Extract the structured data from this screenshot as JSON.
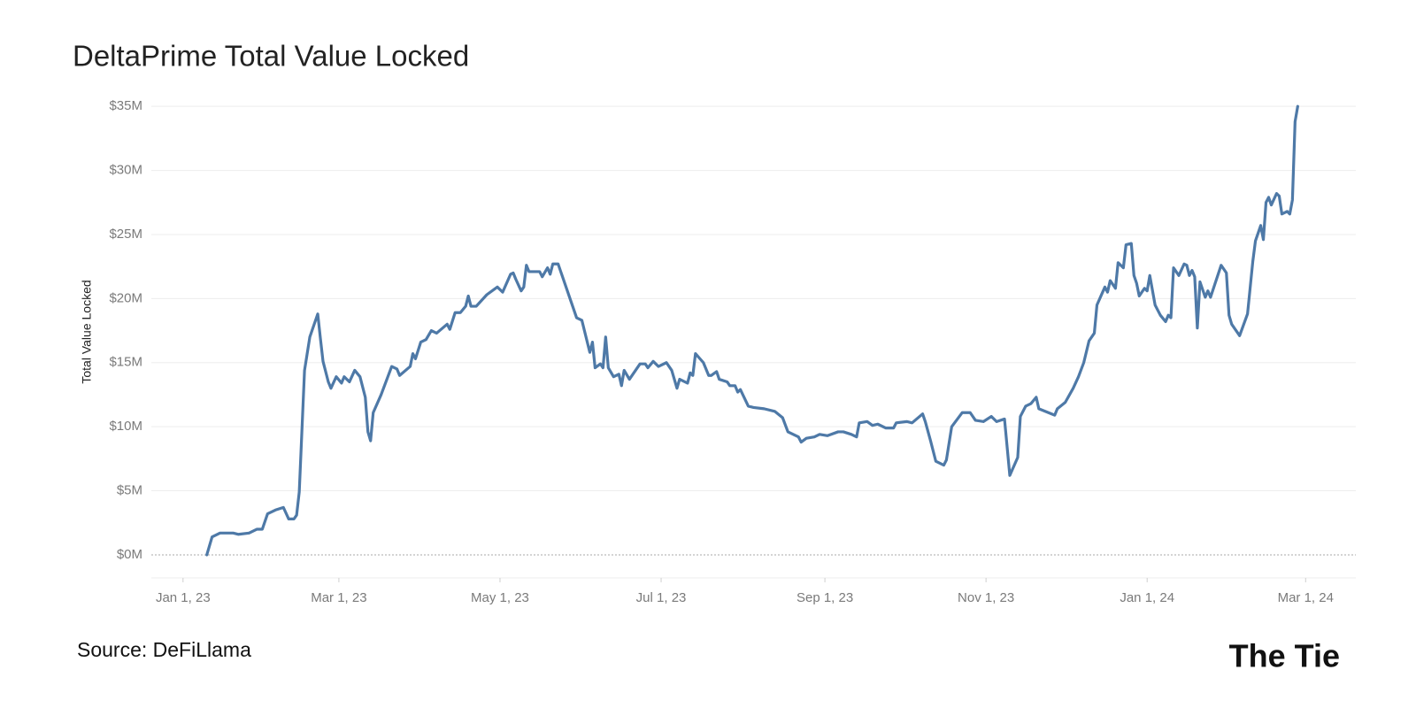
{
  "chart_data": {
    "type": "line",
    "title": "DeltaPrime Total Value Locked",
    "y_axis_label": "Total Value Locked",
    "source": "Source: DeFiLlama",
    "logo": "The Tie",
    "grid": true,
    "series": [
      {
        "name": "Total Value Locked",
        "color": "#4e79a7",
        "values": [
          0,
          1.4,
          1.7,
          1.7,
          1.6,
          1.7,
          2.0,
          2.0,
          3.2,
          3.5,
          3.7,
          2.8,
          2.8,
          3.1,
          4.9,
          14.4,
          17.0,
          18.8,
          16.9,
          15.1,
          13.5,
          13.0,
          13.9,
          13.4,
          13.9,
          13.5,
          14.4,
          13.9,
          12.3,
          9.6,
          8.9,
          11.1,
          12.5,
          14.7,
          14.5,
          14.0,
          14.7,
          15.7,
          15.3,
          16.6,
          16.8,
          17.5,
          17.3,
          18.0,
          17.6,
          18.9,
          18.9,
          19.4,
          20.2,
          19.4,
          19.4,
          20.3,
          20.9,
          20.5,
          21.9,
          22.0,
          21.5,
          20.6,
          20.9,
          22.6,
          22.1,
          22.1,
          21.7,
          22.4,
          21.9,
          22.7,
          22.7,
          18.5,
          18.3,
          15.8,
          16.6,
          14.6,
          14.9,
          14.6,
          17.0,
          14.6,
          13.9,
          14.1,
          13.2,
          14.4,
          13.7,
          14.9,
          14.9,
          14.6,
          15.1,
          14.7,
          15.0,
          14.4,
          13.0,
          13.7,
          13.4,
          14.2,
          14.0,
          15.7,
          15.0,
          14.0,
          14.0,
          14.3,
          13.7,
          13.5,
          13.2,
          13.2,
          12.7,
          12.9,
          11.6,
          11.5,
          11.4,
          11.2,
          10.7,
          9.6,
          9.2,
          8.8,
          9.1,
          9.2,
          9.4,
          9.3,
          9.6,
          9.6,
          9.4,
          9.2,
          10.3,
          10.4,
          10.1,
          10.2,
          9.9,
          9.9,
          10.3,
          10.4,
          10.3,
          11.0,
          10.4,
          8.9,
          7.3,
          7.0,
          7.4,
          10.0,
          11.1,
          11.1,
          10.5,
          10.4,
          10.8,
          10.4,
          10.6,
          6.2,
          7.6,
          10.8,
          11.6,
          11.8,
          12.3,
          11.4,
          10.9,
          11.4,
          11.9,
          13.0,
          13.9,
          15.0,
          16.7,
          17.3,
          19.5,
          20.9,
          20.5,
          21.4,
          20.8,
          22.8,
          22.4,
          24.2,
          24.3,
          21.8,
          21.2,
          20.2,
          20.8,
          20.6,
          21.8,
          19.5,
          18.7,
          18.2,
          18.7,
          18.5,
          22.4,
          21.8,
          22.7,
          22.6,
          21.8,
          22.2,
          21.7,
          17.7,
          21.3,
          20.1,
          20.6,
          20.1,
          22.6,
          22.0,
          18.7,
          18.0,
          17.1,
          18.8,
          22.9,
          24.5,
          25.7,
          24.6,
          27.5,
          27.9,
          27.3,
          28.2,
          28.0,
          26.6,
          26.8,
          26.6,
          27.7,
          33.8,
          35.0
        ]
      }
    ],
    "x": [
      "2023-01-10",
      "2023-01-12",
      "2023-01-15",
      "2023-01-20",
      "2023-01-22",
      "2023-01-26",
      "2023-01-29",
      "2023-01-31",
      "2023-02-02",
      "2023-02-05",
      "2023-02-08",
      "2023-02-10",
      "2023-02-12",
      "2023-02-13",
      "2023-02-14",
      "2023-02-16",
      "2023-02-18",
      "2023-02-21",
      "2023-02-22",
      "2023-02-23",
      "2023-02-25",
      "2023-02-26",
      "2023-02-28",
      "2023-03-02",
      "2023-03-03",
      "2023-03-05",
      "2023-03-07",
      "2023-03-09",
      "2023-03-11",
      "2023-03-12",
      "2023-03-13",
      "2023-03-14",
      "2023-03-17",
      "2023-03-21",
      "2023-03-23",
      "2023-03-24",
      "2023-03-28",
      "2023-03-29",
      "2023-03-30",
      "2023-04-01",
      "2023-04-03",
      "2023-04-05",
      "2023-04-07",
      "2023-04-11",
      "2023-04-12",
      "2023-04-14",
      "2023-04-16",
      "2023-04-18",
      "2023-04-19",
      "2023-04-20",
      "2023-04-22",
      "2023-04-26",
      "2023-04-30",
      "2023-05-02",
      "2023-05-05",
      "2023-05-06",
      "2023-05-07",
      "2023-05-09",
      "2023-05-10",
      "2023-05-11",
      "2023-05-12",
      "2023-05-16",
      "2023-05-17",
      "2023-05-19",
      "2023-05-20",
      "2023-05-21",
      "2023-05-23",
      "2023-05-30",
      "2023-06-01",
      "2023-06-04",
      "2023-06-05",
      "2023-06-06",
      "2023-06-08",
      "2023-06-09",
      "2023-06-10",
      "2023-06-11",
      "2023-06-13",
      "2023-06-15",
      "2023-06-16",
      "2023-06-17",
      "2023-06-19",
      "2023-06-23",
      "2023-06-25",
      "2023-06-26",
      "2023-06-28",
      "2023-06-30",
      "2023-07-03",
      "2023-07-05",
      "2023-07-07",
      "2023-07-08",
      "2023-07-11",
      "2023-07-12",
      "2023-07-13",
      "2023-07-14",
      "2023-07-17",
      "2023-07-19",
      "2023-07-20",
      "2023-07-22",
      "2023-07-23",
      "2023-07-26",
      "2023-07-27",
      "2023-07-29",
      "2023-07-30",
      "2023-07-31",
      "2023-08-03",
      "2023-08-05",
      "2023-08-09",
      "2023-08-13",
      "2023-08-16",
      "2023-08-18",
      "2023-08-22",
      "2023-08-23",
      "2023-08-25",
      "2023-08-28",
      "2023-08-30",
      "2023-09-02",
      "2023-09-06",
      "2023-09-08",
      "2023-09-11",
      "2023-09-13",
      "2023-09-14",
      "2023-09-17",
      "2023-09-19",
      "2023-09-21",
      "2023-09-24",
      "2023-09-27",
      "2023-09-28",
      "2023-10-02",
      "2023-10-04",
      "2023-10-08",
      "2023-10-09",
      "2023-10-11",
      "2023-10-13",
      "2023-10-16",
      "2023-10-17",
      "2023-10-19",
      "2023-10-23",
      "2023-10-26",
      "2023-10-28",
      "2023-10-31",
      "2023-11-03",
      "2023-11-05",
      "2023-11-08",
      "2023-11-10",
      "2023-11-13",
      "2023-11-14",
      "2023-11-16",
      "2023-11-18",
      "2023-11-20",
      "2023-11-21",
      "2023-11-27",
      "2023-11-28",
      "2023-12-01",
      "2023-12-04",
      "2023-12-06",
      "2023-12-08",
      "2023-12-10",
      "2023-12-12",
      "2023-12-13",
      "2023-12-16",
      "2023-12-17",
      "2023-12-18",
      "2023-12-20",
      "2023-12-21",
      "2023-12-23",
      "2023-12-24",
      "2023-12-26",
      "2023-12-27",
      "2023-12-28",
      "2023-12-29",
      "2023-12-31",
      "2024-01-01",
      "2024-01-02",
      "2024-01-04",
      "2024-01-06",
      "2024-01-08",
      "2024-01-09",
      "2024-01-10",
      "2024-01-11",
      "2024-01-13",
      "2024-01-15",
      "2024-01-16",
      "2024-01-17",
      "2024-01-18",
      "2024-01-19",
      "2024-01-20",
      "2024-01-21",
      "2024-01-23",
      "2024-01-24",
      "2024-01-25",
      "2024-01-29",
      "2024-01-31",
      "2024-02-01",
      "2024-02-02",
      "2024-02-05",
      "2024-02-08",
      "2024-02-10",
      "2024-02-11",
      "2024-02-13",
      "2024-02-14",
      "2024-02-15",
      "2024-02-16",
      "2024-02-17",
      "2024-02-19",
      "2024-02-20",
      "2024-02-21",
      "2024-02-23",
      "2024-02-24",
      "2024-02-25",
      "2024-02-26",
      "2024-02-27"
    ],
    "xlim": [
      "2022-12-20",
      "2024-03-20"
    ],
    "xticks": [
      {
        "value": "2023-01-01",
        "label": "Jan 1, 23"
      },
      {
        "value": "2023-03-01",
        "label": "Mar 1, 23"
      },
      {
        "value": "2023-05-01",
        "label": "May 1, 23"
      },
      {
        "value": "2023-07-01",
        "label": "Jul 1, 23"
      },
      {
        "value": "2023-09-01",
        "label": "Sep 1, 23"
      },
      {
        "value": "2023-11-01",
        "label": "Nov 1, 23"
      },
      {
        "value": "2024-01-01",
        "label": "Jan 1, 24"
      },
      {
        "value": "2024-03-01",
        "label": "Mar 1, 24"
      }
    ],
    "ylim": [
      -1.8,
      36.6
    ],
    "yticks": [
      {
        "value": 0,
        "label": "$0M"
      },
      {
        "value": 5,
        "label": "$5M"
      },
      {
        "value": 10,
        "label": "$10M"
      },
      {
        "value": 15,
        "label": "$15M"
      },
      {
        "value": 20,
        "label": "$20M"
      },
      {
        "value": 25,
        "label": "$25M"
      },
      {
        "value": 30,
        "label": "$30M"
      },
      {
        "value": 35,
        "label": "$35M"
      }
    ]
  }
}
